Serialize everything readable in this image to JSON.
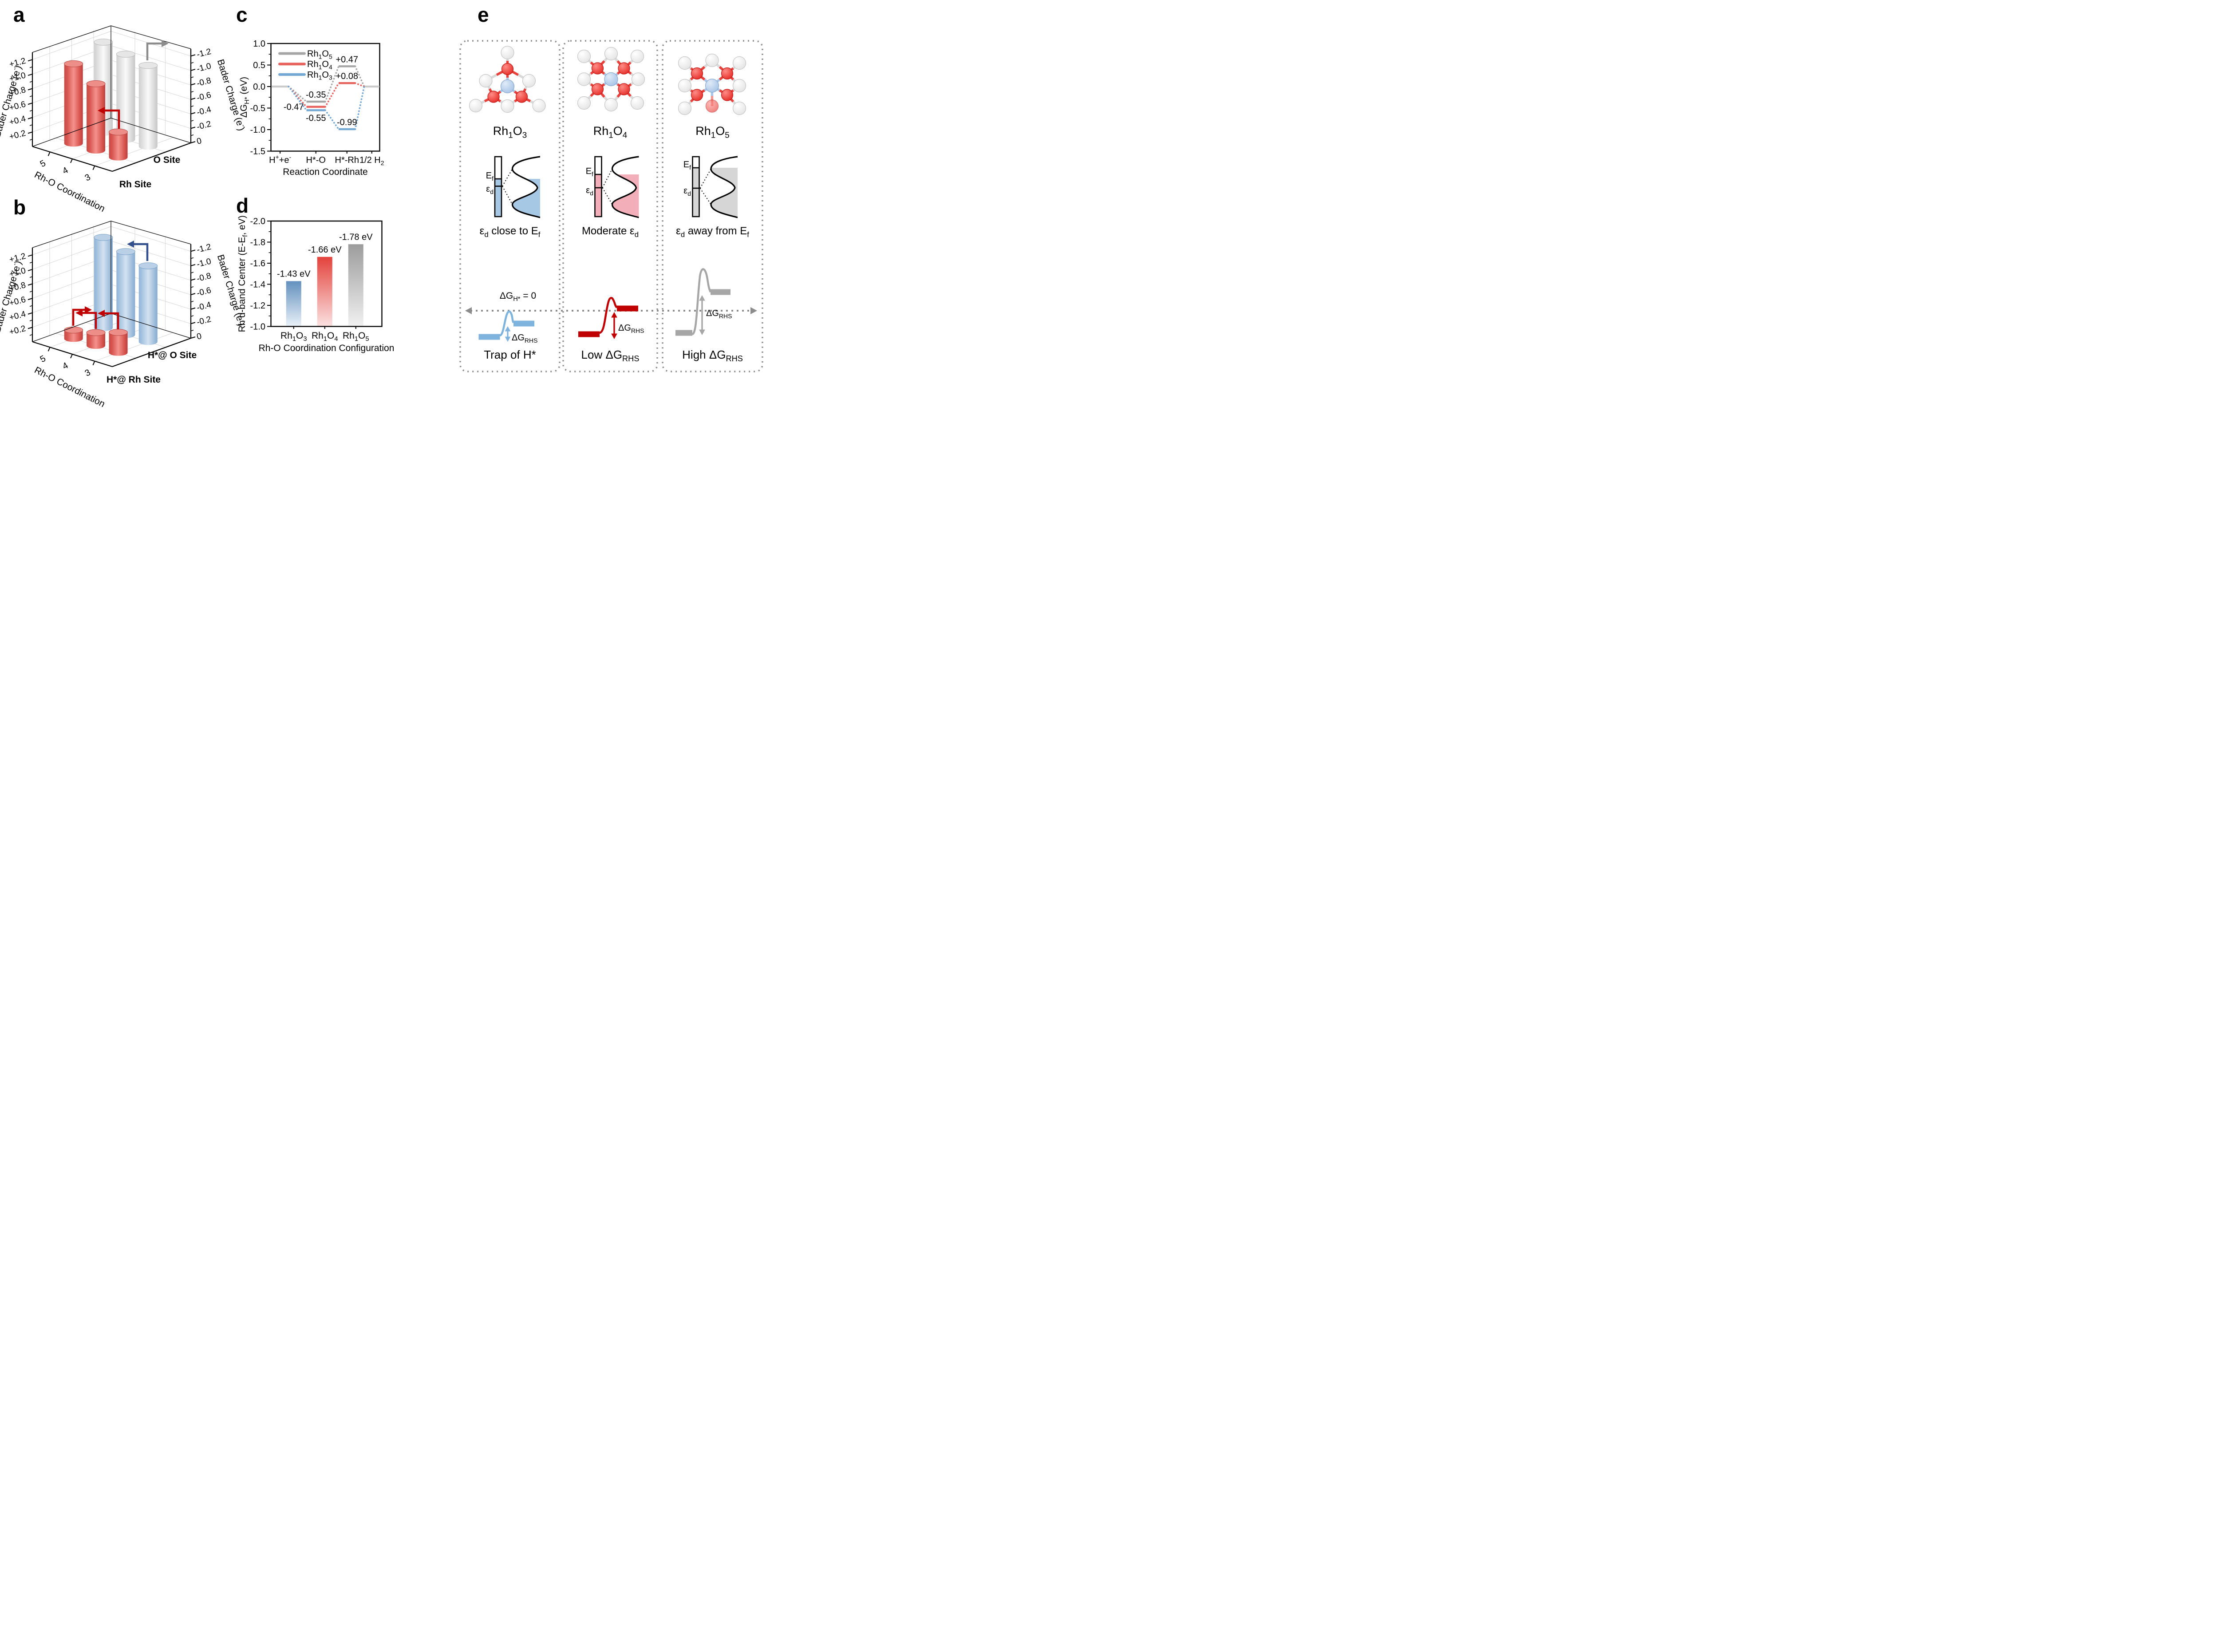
{
  "panels": {
    "a": {
      "letter": "a",
      "left_axis_label": "Bader Charge (e^-^)",
      "right_axis_label": "Bader Charge (e^-^)",
      "x_axis_label": "Rh-O Coordination",
      "left_ticks": [
        "+0.2",
        "+0.4",
        "+0.6",
        "+0.8",
        "+1.0",
        "+1.2"
      ],
      "right_ticks": [
        "0",
        "-0.2",
        "-0.4",
        "-0.6",
        "-0.8",
        "-1.0",
        "-1.2"
      ],
      "x_ticks": [
        "5",
        "4",
        "3"
      ],
      "site_labels": {
        "o": "O Site",
        "rh": "Rh Site"
      }
    },
    "b": {
      "letter": "b",
      "left_axis_label": "Bader Charge (e^-^)",
      "right_axis_label": "Bader Charge (e^-^)",
      "x_axis_label": "Rh-O Coordination",
      "left_ticks": [
        "+0.2",
        "+0.4",
        "+0.6",
        "+0.8",
        "+1.0",
        "+1.2"
      ],
      "right_ticks": [
        "0",
        "-0.2",
        "-0.4",
        "-0.6",
        "-0.8",
        "-1.0",
        "-1.2"
      ],
      "x_ticks": [
        "5",
        "4",
        "3"
      ],
      "site_labels": {
        "o": "H*@ O Site",
        "rh": "H*@ Rh Site"
      }
    },
    "c": {
      "letter": "c",
      "ylabel": "ΔG~H*~ (eV)",
      "xlabel": "Reaction Coordinate",
      "yticks": [
        "1.0",
        "0.5",
        "0.0",
        "-0.5",
        "-1.0",
        "-1.5"
      ],
      "xticks": [
        "H^+^+e^-^",
        "H*-O",
        "H*-Rh",
        "1/2 H~2~"
      ],
      "legend": [
        {
          "label": "Rh~1~O~5~"
        },
        {
          "label": "Rh~1~O~4~"
        },
        {
          "label": "Rh~1~O~3~"
        }
      ]
    },
    "d": {
      "letter": "d",
      "ylabel": "Rh d-band Center (E-E~f~, eV)",
      "xlabel": "Rh-O Coordination Configuration",
      "yticks": [
        "-2.0",
        "-1.8",
        "-1.6",
        "-1.4",
        "-1.2",
        "-1.0"
      ],
      "xticks": [
        "Rh~1~O~3~",
        "Rh~1~O~4~",
        "Rh~1~O~5~"
      ]
    },
    "e": {
      "letter": "e",
      "zero_line_label": "ΔG~H*~ = 0",
      "ef_label": "E~f~",
      "ed_label": "ε~d~",
      "columns": [
        {
          "formula": "Rh~1~O~3~",
          "band_caption": "ε~d~ close to E~f~",
          "dg_label": "ΔG~RHS~",
          "barrier_caption": "Trap of H*"
        },
        {
          "formula": "Rh~1~O~4~",
          "band_caption": "Moderate ε~d~",
          "dg_label": "ΔG~RHS~",
          "barrier_caption": "Low ΔG~RHS~"
        },
        {
          "formula": "Rh~1~O~5~",
          "band_caption": "ε~d~ away from E~f~",
          "dg_label": "ΔG~RHS~",
          "barrier_caption": "High ΔG~RHS~"
        }
      ]
    }
  },
  "colors": {
    "rh_site_red": "#CC1111",
    "dark_red": "#C00000",
    "navy": "#33508C",
    "series_gray": "#A6A6A6",
    "series_red": "#E8625D",
    "series_blue": "#74A8D4",
    "plateau_gray": "#CCCCCC",
    "barrier_blue": "#7EB3DE",
    "dashed_gray": "#8C8C8C"
  },
  "chart_data": [
    {
      "id": "a",
      "type": "bar3d",
      "x_axis": "Rh-O Coordination",
      "x_categories": [
        "5",
        "4",
        "3"
      ],
      "left_axis": {
        "label": "Bader Charge (e-)",
        "range": [
          0,
          1.3
        ]
      },
      "right_axis": {
        "label": "Bader Charge (e-)",
        "range": [
          0,
          -1.3
        ]
      },
      "series": [
        {
          "name": "Rh Site",
          "axis": "left",
          "style": "red",
          "values": [
            1.1,
            0.92,
            0.35
          ]
        },
        {
          "name": "O Site",
          "axis": "right",
          "style": "gray",
          "values": [
            -1.25,
            -1.18,
            -1.12
          ]
        }
      ]
    },
    {
      "id": "b",
      "type": "bar3d",
      "x_axis": "Rh-O Coordination",
      "x_categories": [
        "5",
        "4",
        "3"
      ],
      "left_axis": {
        "label": "Bader Charge (e-)",
        "range": [
          0,
          1.3
        ]
      },
      "right_axis": {
        "label": "Bader Charge (e-)",
        "range": [
          0,
          -1.3
        ]
      },
      "series": [
        {
          "name": "H*@ Rh Site",
          "axis": "left",
          "style": "red",
          "values": [
            0.12,
            0.18,
            0.28
          ]
        },
        {
          "name": "H*@ O Site",
          "axis": "right",
          "style": "blue",
          "values": [
            -1.25,
            -1.15,
            -1.05
          ]
        }
      ]
    },
    {
      "id": "c",
      "type": "line",
      "xlabel": "Reaction Coordinate",
      "ylabel": "ΔG_H* (eV)",
      "ylim": [
        -1.5,
        1.0
      ],
      "grid": false,
      "legend_position": "top-left",
      "x_categories": [
        "H+ + e-",
        "H*-O",
        "H*-Rh",
        "1/2 H2"
      ],
      "series": [
        {
          "name": "Rh1O5",
          "color": "#A6A6A6",
          "values": [
            0,
            -0.35,
            0.47,
            0
          ],
          "point_labels": [
            "",
            "-0.35",
            "+0.47",
            ""
          ]
        },
        {
          "name": "Rh1O4",
          "color": "#E8625D",
          "values": [
            0,
            -0.47,
            0.08,
            0
          ],
          "point_labels": [
            "",
            "-0.47",
            "+0.08",
            ""
          ]
        },
        {
          "name": "Rh1O3",
          "color": "#74A8D4",
          "values": [
            0,
            -0.55,
            -0.99,
            0
          ],
          "point_labels": [
            "",
            "-0.55",
            "-0.99",
            ""
          ]
        }
      ]
    },
    {
      "id": "d",
      "type": "bar",
      "categories": [
        "Rh1O3",
        "Rh1O4",
        "Rh1O5"
      ],
      "values": [
        -1.43,
        -1.66,
        -1.78
      ],
      "bar_labels": [
        "-1.43 eV",
        "-1.66 eV",
        "-1.78 eV"
      ],
      "label_colors": [
        "#5B9BD5",
        "#E03A34",
        "#A6A6A6"
      ],
      "bar_gradients": [
        [
          "#6290BD",
          "#EAF1F8"
        ],
        [
          "#E4423C",
          "#FAE2E1"
        ],
        [
          "#9C9C9C",
          "#F1F1F1"
        ]
      ],
      "ylabel": "Rh d-band Center (E-Ef, eV)",
      "xlabel": "Rh-O Coordination Configuration",
      "ylim": [
        -1.0,
        -2.0
      ],
      "grid": false
    }
  ]
}
